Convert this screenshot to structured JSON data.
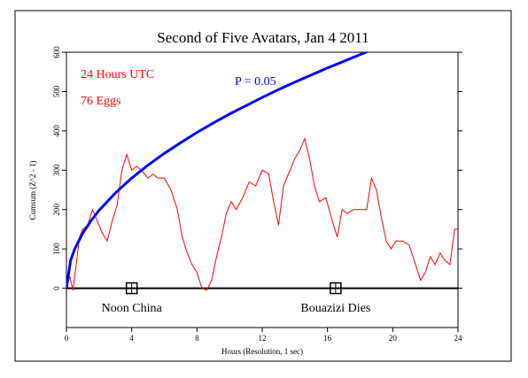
{
  "chart_data": {
    "type": "line",
    "title": "Second of Five Avatars, Jan 4 2011",
    "xlabel": "Hours (Resolution, 1 sec)",
    "ylabel": "Cumsum (Z^2 - 1)",
    "annotations": [
      "24 Hours UTC",
      "76 Eggs"
    ],
    "xlim": [
      0,
      24
    ],
    "ylim": [
      -100,
      600
    ],
    "xticks": [
      0,
      4,
      8,
      12,
      16,
      20,
      24
    ],
    "yticks": [
      0,
      100,
      200,
      300,
      400,
      500,
      600
    ],
    "markers": [
      {
        "x": 4,
        "label": "Noon China"
      },
      {
        "x": 16.5,
        "label": "Bouazizi Dies"
      }
    ],
    "series": [
      {
        "color": "#ff0000",
        "x": [
          0,
          0.2,
          0.4,
          0.6,
          0.8,
          1.0,
          1.3,
          1.6,
          1.9,
          2.2,
          2.5,
          2.8,
          3.1,
          3.4,
          3.7,
          4.0,
          4.3,
          4.6,
          5.0,
          5.3,
          5.6,
          6.0,
          6.4,
          6.8,
          7.1,
          7.4,
          7.7,
          8.0,
          8.3,
          8.6,
          8.9,
          9.2,
          9.5,
          9.8,
          10.1,
          10.4,
          10.8,
          11.2,
          11.6,
          12.0,
          12.4,
          12.7,
          13.0,
          13.3,
          13.7,
          14.0,
          14.3,
          14.6,
          14.9,
          15.2,
          15.5,
          15.9,
          16.3,
          16.6,
          16.9,
          17.2,
          17.6,
          18.0,
          18.4,
          18.7,
          19.0,
          19.3,
          19.6,
          19.9,
          20.2,
          20.6,
          21.0,
          21.4,
          21.7,
          22.0,
          22.3,
          22.6,
          22.9,
          23.2,
          23.5,
          23.8,
          24.0
        ],
        "values": [
          0,
          30,
          -5,
          60,
          130,
          150,
          160,
          200,
          170,
          140,
          120,
          170,
          210,
          300,
          340,
          300,
          310,
          300,
          280,
          290,
          280,
          280,
          250,
          200,
          130,
          90,
          60,
          40,
          0,
          -5,
          20,
          80,
          130,
          190,
          220,
          200,
          230,
          270,
          260,
          300,
          290,
          220,
          160,
          260,
          300,
          330,
          350,
          380,
          330,
          260,
          220,
          230,
          170,
          130,
          200,
          190,
          200,
          200,
          200,
          280,
          250,
          180,
          120,
          100,
          120,
          120,
          110,
          60,
          20,
          40,
          80,
          60,
          90,
          70,
          60,
          150,
          150
        ]
      },
      {
        "name": "P = 0.05",
        "color": "#0000ff",
        "x": [
          0,
          0.25,
          0.5,
          1,
          1.5,
          2,
          3,
          4,
          5,
          6,
          7,
          8,
          9,
          10,
          11,
          12,
          13,
          14,
          15,
          16,
          17,
          18,
          18.6
        ],
        "values": [
          0,
          70,
          99,
          140,
          171,
          198,
          242,
          280,
          313,
          343,
          370,
          396,
          420,
          443,
          464,
          485,
          505,
          524,
          542,
          560,
          577,
          594,
          604
        ]
      }
    ]
  }
}
